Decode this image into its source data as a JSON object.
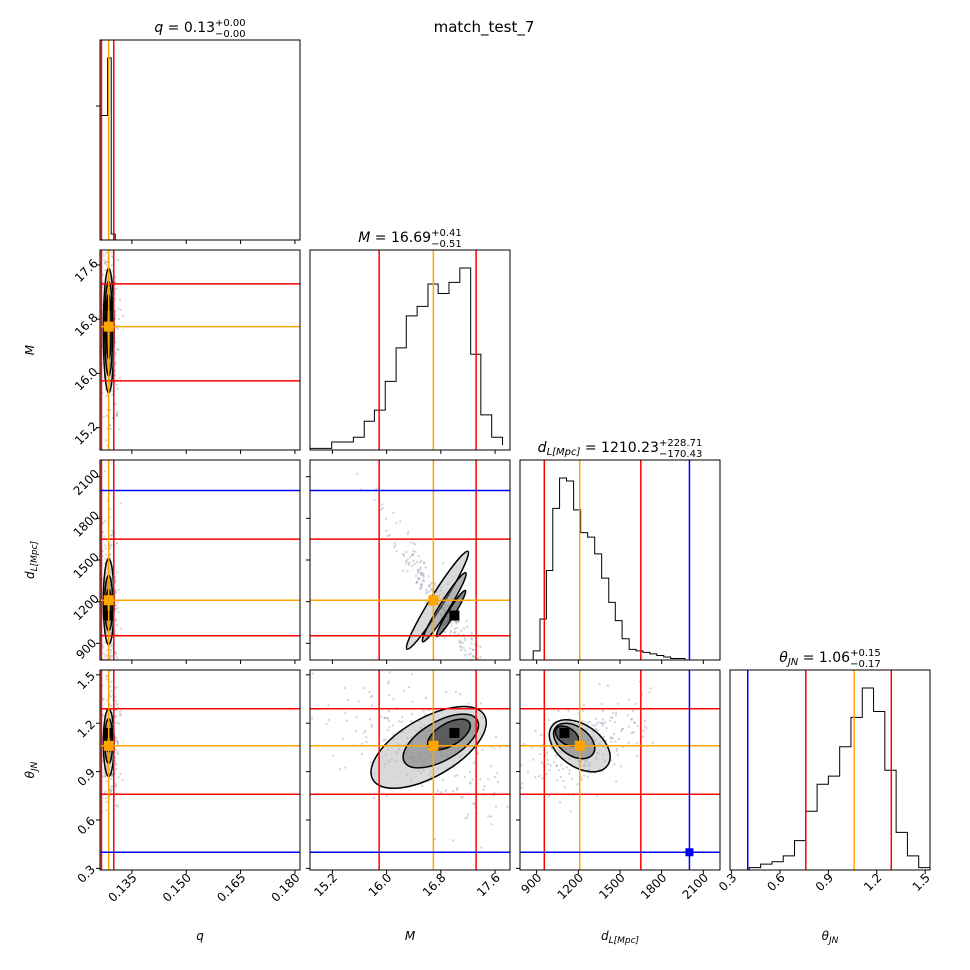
{
  "figure_title": "match_test_7",
  "colors": {
    "truth": "#0000ff",
    "median": "#ffa500",
    "quantile": "#ff0000",
    "hist": "#000000",
    "points": "#9a96b0"
  },
  "params": [
    {
      "key": "q",
      "label": "q",
      "title_val": "0.13",
      "err_plus": "+0.00",
      "err_minus": "−0.00",
      "range": [
        0.1262,
        0.1814
      ],
      "ticks": [
        0.135,
        0.15,
        0.165,
        0.18
      ],
      "tick_labels": [
        "0.135",
        "0.150",
        "0.165",
        "0.180"
      ]
    },
    {
      "key": "M",
      "label": "M",
      "title_val": "16.69",
      "err_plus": "+0.41",
      "err_minus": "−0.51",
      "range": [
        14.87,
        17.82
      ],
      "ticks": [
        15.2,
        16.0,
        16.8,
        17.6
      ],
      "tick_labels": [
        "15.2",
        "16.0",
        "16.8",
        "17.6"
      ]
    },
    {
      "key": "dL",
      "label": "d_L[Mpc]",
      "title_val": "1210.23",
      "err_plus": "+228.71",
      "err_minus": "−170.43",
      "range": [
        780,
        2220
      ],
      "ticks": [
        900,
        1200,
        1500,
        1800,
        2100
      ],
      "tick_labels": [
        "900",
        "1200",
        "1500",
        "1800",
        "2100"
      ]
    },
    {
      "key": "theta",
      "label": "θ_JN",
      "title_val": "1.06",
      "err_plus": "+0.15",
      "err_minus": "−0.17",
      "range": [
        0.29,
        1.53
      ],
      "ticks": [
        0.3,
        0.6,
        0.9,
        1.2,
        1.5
      ],
      "tick_labels": [
        "0.3",
        "0.6",
        "0.9",
        "1.2",
        "1.5"
      ]
    }
  ],
  "chart_data": {
    "type": "corner",
    "title": "match_test_7",
    "parameters": [
      "q",
      "M",
      "d_L[Mpc]",
      "θ_JN"
    ],
    "medians": {
      "q": 0.1286,
      "M": 16.69,
      "dL": 1210.23,
      "theta": 1.06
    },
    "quantiles": {
      "q": [
        0.1266,
        0.13
      ],
      "M": [
        15.89,
        17.32
      ],
      "dL": [
        955,
        1650
      ],
      "theta": [
        0.76,
        1.29
      ]
    },
    "truths": {
      "dL": 2000,
      "theta": 0.4
    },
    "maximum": {
      "q": 0.1286,
      "M": 17.0,
      "dL": 1100,
      "theta": 1.14
    },
    "histograms": {
      "q": {
        "edges": [
          0.1262,
          0.1283,
          0.1293,
          0.1304
        ],
        "counts": [
          1.45,
          2.12,
          0.07
        ]
      },
      "M": {
        "edges": [
          14.87,
          15.04,
          15.19,
          15.35,
          15.51,
          15.67,
          15.82,
          15.98,
          16.14,
          16.29,
          16.45,
          16.61,
          16.76,
          16.92,
          17.08,
          17.24,
          17.39,
          17.55,
          17.71
        ],
        "counts": [
          0.01,
          0.01,
          0.05,
          0.05,
          0.08,
          0.18,
          0.25,
          0.43,
          0.64,
          0.84,
          0.9,
          1.04,
          0.98,
          1.05,
          1.14,
          0.6,
          0.22,
          0.08,
          0.03
        ]
      },
      "dL": {
        "edges": [
          875,
          924,
          970,
          1016,
          1065,
          1115,
          1166,
          1217,
          1267,
          1318,
          1368,
          1419,
          1466,
          1515,
          1566,
          1616,
          1665,
          1715,
          1765,
          1815,
          1865,
          1917,
          1968,
          2017,
          2067
        ],
        "counts": [
          0.06,
          0.27,
          0.59,
          1.0,
          1.2,
          1.18,
          0.99,
          0.84,
          0.81,
          0.7,
          0.54,
          0.38,
          0.26,
          0.14,
          0.07,
          0.06,
          0.05,
          0.04,
          0.03,
          0.02,
          0.01,
          0.01,
          0.0,
          0.0
        ]
      },
      "theta": {
        "edges": [
          0.41,
          0.48,
          0.55,
          0.62,
          0.69,
          0.76,
          0.83,
          0.9,
          0.97,
          1.04,
          1.11,
          1.18,
          1.25,
          1.32,
          1.39,
          1.46,
          1.53
        ],
        "counts": [
          0.02,
          0.05,
          0.07,
          0.12,
          0.25,
          0.5,
          0.73,
          0.8,
          1.05,
          1.3,
          1.55,
          1.35,
          0.85,
          0.32,
          0.12,
          0.02
        ]
      }
    },
    "contours": {
      "1-0": [
        {
          "cx": 0.1286,
          "cy": 16.69,
          "rx": 0.00068,
          "ry": 0.48,
          "rot": 0
        },
        {
          "cx": 0.1286,
          "cy": 16.66,
          "rx": 0.0011,
          "ry": 0.7,
          "rot": 0
        },
        {
          "cx": 0.1286,
          "cy": 16.63,
          "rx": 0.00148,
          "ry": 0.92,
          "rot": 0
        }
      ],
      "2-0": [
        {
          "cx": 0.1286,
          "cy": 1180,
          "rx": 0.00068,
          "ry": 110,
          "rot": 0
        },
        {
          "cx": 0.1286,
          "cy": 1190,
          "rx": 0.0011,
          "ry": 200,
          "rot": 0
        },
        {
          "cx": 0.1286,
          "cy": 1200,
          "rx": 0.00148,
          "ry": 310,
          "rot": 0
        }
      ],
      "2-1": [
        {
          "cx": 16.95,
          "cy": 1115,
          "rx": 0.4,
          "ry": 25,
          "rot": -58
        },
        {
          "cx": 16.85,
          "cy": 1160,
          "rx": 0.6,
          "ry": 35,
          "rot": -58
        },
        {
          "cx": 16.75,
          "cy": 1210,
          "rx": 0.85,
          "ry": 48,
          "rot": -58
        }
      ],
      "3-0": [
        {
          "cx": 0.1286,
          "cy": 1.09,
          "rx": 0.00068,
          "ry": 0.07,
          "rot": 0
        },
        {
          "cx": 0.1286,
          "cy": 1.09,
          "rx": 0.0011,
          "ry": 0.14,
          "rot": 0
        },
        {
          "cx": 0.1286,
          "cy": 1.08,
          "rx": 0.00148,
          "ry": 0.21,
          "rot": 0
        }
      ],
      "3-1": [
        {
          "cx": 16.92,
          "cy": 1.13,
          "rx": 0.35,
          "ry": 0.07,
          "rot": -30
        },
        {
          "cx": 16.8,
          "cy": 1.09,
          "rx": 0.62,
          "ry": 0.12,
          "rot": -30
        },
        {
          "cx": 16.62,
          "cy": 1.05,
          "rx": 0.95,
          "ry": 0.18,
          "rot": -30
        }
      ],
      "3-2": [
        {
          "cx": 1120,
          "cy": 1.12,
          "rx": 95,
          "ry": 0.05,
          "rot": 35
        },
        {
          "cx": 1170,
          "cy": 1.09,
          "rx": 165,
          "ry": 0.09,
          "rot": 35
        },
        {
          "cx": 1210,
          "cy": 1.06,
          "rx": 245,
          "ry": 0.13,
          "rot": 35
        }
      ]
    }
  }
}
